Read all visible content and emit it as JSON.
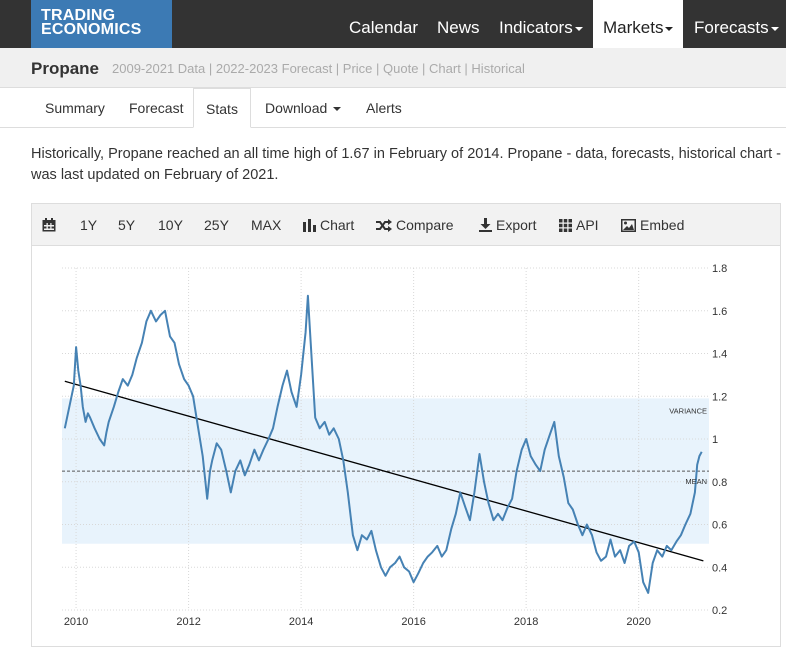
{
  "brand": {
    "line1": "TRADING",
    "line2": "ECONOMICS"
  },
  "nav": {
    "calendar": "Calendar",
    "news": "News",
    "indicators": "Indicators",
    "markets": "Markets",
    "forecasts": "Forecasts"
  },
  "page": {
    "title": "Propane",
    "subnav": "2009-2021 Data | 2022-2023 Forecast | Price | Quote | Chart | Historical"
  },
  "tabs": {
    "summary": "Summary",
    "forecast": "Forecast",
    "stats": "Stats",
    "download": "Download",
    "alerts": "Alerts"
  },
  "description": "Historically, Propane reached an all time high of 1.67 in February of 2014. Propane - data, forecasts, historical chart - was last updated on February of 2021.",
  "toolbar": {
    "r1y": "1Y",
    "r5y": "5Y",
    "r10y": "10Y",
    "r25y": "25Y",
    "rmax": "MAX",
    "chart": "Chart",
    "compare": "Compare",
    "export": "Export",
    "api": "API",
    "embed": "Embed"
  },
  "colors": {
    "line": "#4682b4",
    "band": "#e8f3fc",
    "topbar": "#333333",
    "logo": "#3c7ab4"
  },
  "chart_data": {
    "type": "line",
    "xlim": [
      2009.75,
      2021.25
    ],
    "ylim": [
      0.2,
      1.8
    ],
    "xticks": [
      2010,
      2012,
      2014,
      2016,
      2018,
      2020
    ],
    "yticks": [
      0.2,
      0.4,
      0.6,
      0.8,
      1,
      1.2,
      1.4,
      1.6,
      1.8
    ],
    "grid": true,
    "mean": 0.85,
    "mean_label": "MEAN",
    "variance_band": [
      0.51,
      1.19
    ],
    "variance_label": "VARIANCE",
    "trendline": {
      "x": [
        2009.8,
        2021.15
      ],
      "y": [
        1.27,
        0.43
      ]
    },
    "series": [
      {
        "x": [
          2009.8,
          2009.88,
          2009.96,
          2010.0,
          2010.04,
          2010.08,
          2010.12,
          2010.17,
          2010.21,
          2010.25,
          2010.33,
          2010.42,
          2010.5,
          2010.54,
          2010.58,
          2010.67,
          2010.75,
          2010.83,
          2010.92,
          2011.0,
          2011.08,
          2011.17,
          2011.25,
          2011.33,
          2011.42,
          2011.5,
          2011.58,
          2011.67,
          2011.75,
          2011.83,
          2011.92,
          2012.0,
          2012.08,
          2012.17,
          2012.25,
          2012.33,
          2012.38,
          2012.42,
          2012.5,
          2012.58,
          2012.67,
          2012.75,
          2012.83,
          2012.92,
          2013.0,
          2013.08,
          2013.17,
          2013.25,
          2013.33,
          2013.42,
          2013.5,
          2013.58,
          2013.67,
          2013.75,
          2013.83,
          2013.92,
          2014.0,
          2014.08,
          2014.12,
          2014.17,
          2014.25,
          2014.33,
          2014.42,
          2014.5,
          2014.58,
          2014.67,
          2014.75,
          2014.83,
          2014.92,
          2015.0,
          2015.08,
          2015.17,
          2015.25,
          2015.33,
          2015.42,
          2015.5,
          2015.58,
          2015.67,
          2015.75,
          2015.83,
          2015.92,
          2016.0,
          2016.08,
          2016.17,
          2016.25,
          2016.33,
          2016.42,
          2016.5,
          2016.58,
          2016.67,
          2016.75,
          2016.83,
          2016.92,
          2017.0,
          2017.08,
          2017.17,
          2017.25,
          2017.33,
          2017.42,
          2017.5,
          2017.58,
          2017.67,
          2017.75,
          2017.83,
          2017.92,
          2018.0,
          2018.08,
          2018.17,
          2018.25,
          2018.33,
          2018.42,
          2018.5,
          2018.58,
          2018.67,
          2018.75,
          2018.83,
          2018.92,
          2019.0,
          2019.08,
          2019.17,
          2019.25,
          2019.33,
          2019.42,
          2019.5,
          2019.58,
          2019.67,
          2019.75,
          2019.83,
          2019.92,
          2020.0,
          2020.08,
          2020.17,
          2020.25,
          2020.33,
          2020.42,
          2020.5,
          2020.58,
          2020.67,
          2020.75,
          2020.83,
          2020.92,
          2021.0,
          2021.04,
          2021.08,
          2021.12
        ],
        "y": [
          1.05,
          1.15,
          1.25,
          1.43,
          1.32,
          1.25,
          1.15,
          1.08,
          1.12,
          1.1,
          1.05,
          1.0,
          0.97,
          1.03,
          1.08,
          1.15,
          1.22,
          1.28,
          1.25,
          1.3,
          1.38,
          1.45,
          1.55,
          1.6,
          1.55,
          1.58,
          1.6,
          1.48,
          1.45,
          1.35,
          1.28,
          1.25,
          1.2,
          1.05,
          0.92,
          0.72,
          0.85,
          0.9,
          0.98,
          0.95,
          0.85,
          0.75,
          0.85,
          0.9,
          0.83,
          0.88,
          0.95,
          0.9,
          0.95,
          1.0,
          1.05,
          1.15,
          1.25,
          1.32,
          1.22,
          1.15,
          1.3,
          1.5,
          1.67,
          1.45,
          1.1,
          1.05,
          1.08,
          1.02,
          1.05,
          1.0,
          0.9,
          0.75,
          0.55,
          0.48,
          0.55,
          0.53,
          0.57,
          0.48,
          0.4,
          0.36,
          0.4,
          0.42,
          0.45,
          0.4,
          0.38,
          0.33,
          0.37,
          0.42,
          0.45,
          0.47,
          0.5,
          0.45,
          0.48,
          0.58,
          0.65,
          0.75,
          0.68,
          0.62,
          0.75,
          0.93,
          0.8,
          0.7,
          0.62,
          0.65,
          0.62,
          0.68,
          0.72,
          0.85,
          0.95,
          1.0,
          0.92,
          0.88,
          0.85,
          0.95,
          1.02,
          1.08,
          0.92,
          0.82,
          0.7,
          0.67,
          0.6,
          0.55,
          0.6,
          0.55,
          0.47,
          0.43,
          0.45,
          0.53,
          0.45,
          0.48,
          0.42,
          0.5,
          0.52,
          0.47,
          0.33,
          0.28,
          0.42,
          0.48,
          0.45,
          0.5,
          0.48,
          0.52,
          0.55,
          0.6,
          0.65,
          0.75,
          0.88,
          0.92,
          0.94
        ]
      }
    ]
  }
}
